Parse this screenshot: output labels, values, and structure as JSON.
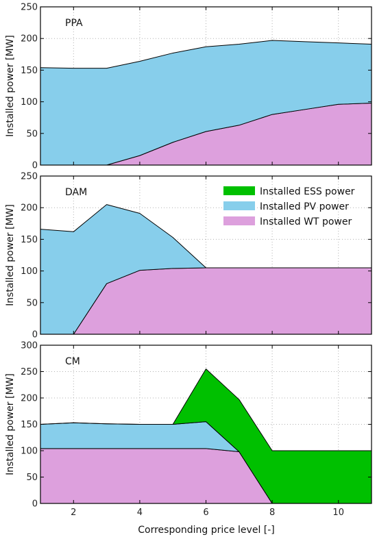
{
  "chart_data": [
    {
      "type": "area",
      "panel_label": "PPA",
      "ylabel": "Installed power [MW]",
      "xlim": [
        1,
        11
      ],
      "ylim": [
        0,
        250
      ],
      "yticks": [
        0,
        50,
        100,
        150,
        200,
        250
      ],
      "x": [
        1,
        2,
        3,
        4,
        5,
        6,
        7,
        8,
        9,
        10,
        11
      ],
      "stacked": true,
      "series": [
        {
          "key": "wt",
          "name": "Installed WT power",
          "values": [
            0,
            0,
            0,
            15,
            36,
            53,
            63,
            80,
            88,
            96,
            98
          ]
        },
        {
          "key": "pv",
          "name": "Installed PV power",
          "values": [
            154,
            153,
            153,
            149,
            141,
            134,
            128,
            117,
            107,
            97,
            93
          ]
        }
      ]
    },
    {
      "type": "area",
      "panel_label": "DAM",
      "ylabel": "Installed power [MW]",
      "xlim": [
        1,
        11
      ],
      "ylim": [
        0,
        250
      ],
      "yticks": [
        0,
        50,
        100,
        150,
        200,
        250
      ],
      "x": [
        1,
        2,
        3,
        4,
        5,
        6,
        7,
        8,
        9,
        10,
        11
      ],
      "stacked": true,
      "series": [
        {
          "key": "wt",
          "name": "Installed WT power",
          "values": [
            0,
            0,
            80,
            101,
            104,
            105,
            105,
            105,
            105,
            105,
            105
          ]
        },
        {
          "key": "pv",
          "name": "Installed PV power",
          "values": [
            166,
            162,
            125,
            90,
            49,
            0,
            0,
            0,
            0,
            0,
            0
          ]
        }
      ]
    },
    {
      "type": "area",
      "panel_label": "CM",
      "ylabel": "Installed power [MW]",
      "xlabel": "Corresponding price level  [-]",
      "xlim": [
        1,
        11
      ],
      "ylim": [
        0,
        300
      ],
      "yticks": [
        0,
        50,
        100,
        150,
        200,
        250,
        300
      ],
      "x": [
        1,
        2,
        3,
        4,
        5,
        6,
        7,
        8,
        9,
        10,
        11
      ],
      "stacked": true,
      "series": [
        {
          "key": "wt",
          "name": "Installed WT power",
          "values": [
            104,
            104,
            104,
            104,
            104,
            104,
            98,
            0,
            0,
            0,
            0
          ]
        },
        {
          "key": "pv",
          "name": "Installed PV power",
          "values": [
            46,
            49,
            47,
            46,
            46,
            51,
            0,
            0,
            0,
            0,
            0
          ]
        },
        {
          "key": "ess",
          "name": "Installed ESS power",
          "values": [
            0,
            0,
            0,
            0,
            0,
            100,
            99,
            100,
            100,
            100,
            100
          ]
        }
      ]
    }
  ],
  "xticks": [
    2,
    4,
    6,
    8,
    10
  ],
  "legend": {
    "placement": "top-right of DAM panel",
    "entries": [
      {
        "key": "ess",
        "label": "Installed ESS power"
      },
      {
        "key": "pv",
        "label": "Installed PV power"
      },
      {
        "key": "wt",
        "label": "Installed WT power"
      }
    ]
  },
  "colors": {
    "wt": "#dda0dd",
    "pv": "#87ceeb",
    "ess": "#00c000",
    "grid": "#b0b0b0",
    "axis": "#000000"
  }
}
